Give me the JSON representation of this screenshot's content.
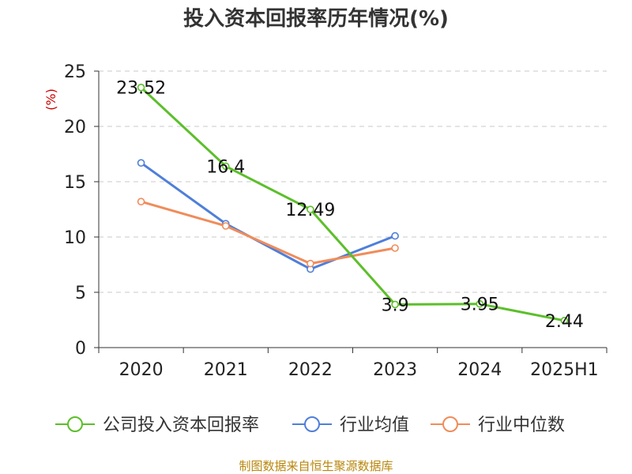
{
  "chart_data": {
    "type": "line",
    "title": "投入资本回报率历年情况(%)",
    "ylabel": "(%)",
    "categories": [
      "2020",
      "2021",
      "2022",
      "2023",
      "2024",
      "2025H1"
    ],
    "ylim": [
      0,
      25
    ],
    "yticks": [
      "0",
      "5",
      "10",
      "15",
      "20",
      "25"
    ],
    "grid": true,
    "legend_position": "bottom",
    "series": [
      {
        "name": "公司投入资本回报率",
        "color": "#5cbf2a",
        "values": [
          23.52,
          16.4,
          12.49,
          3.9,
          3.95,
          2.44
        ],
        "labels": [
          "23.52",
          "16.4",
          "12.49",
          "3.9",
          "3.95",
          "2.44"
        ]
      },
      {
        "name": "行业均值",
        "color": "#4f7fd9",
        "values": [
          16.7,
          11.2,
          7.1,
          10.1,
          null,
          null
        ]
      },
      {
        "name": "行业中位数",
        "color": "#f08c5a",
        "values": [
          13.2,
          11.0,
          7.6,
          9.0,
          null,
          null
        ]
      }
    ],
    "source": "制图数据来自恒生聚源数据库"
  }
}
